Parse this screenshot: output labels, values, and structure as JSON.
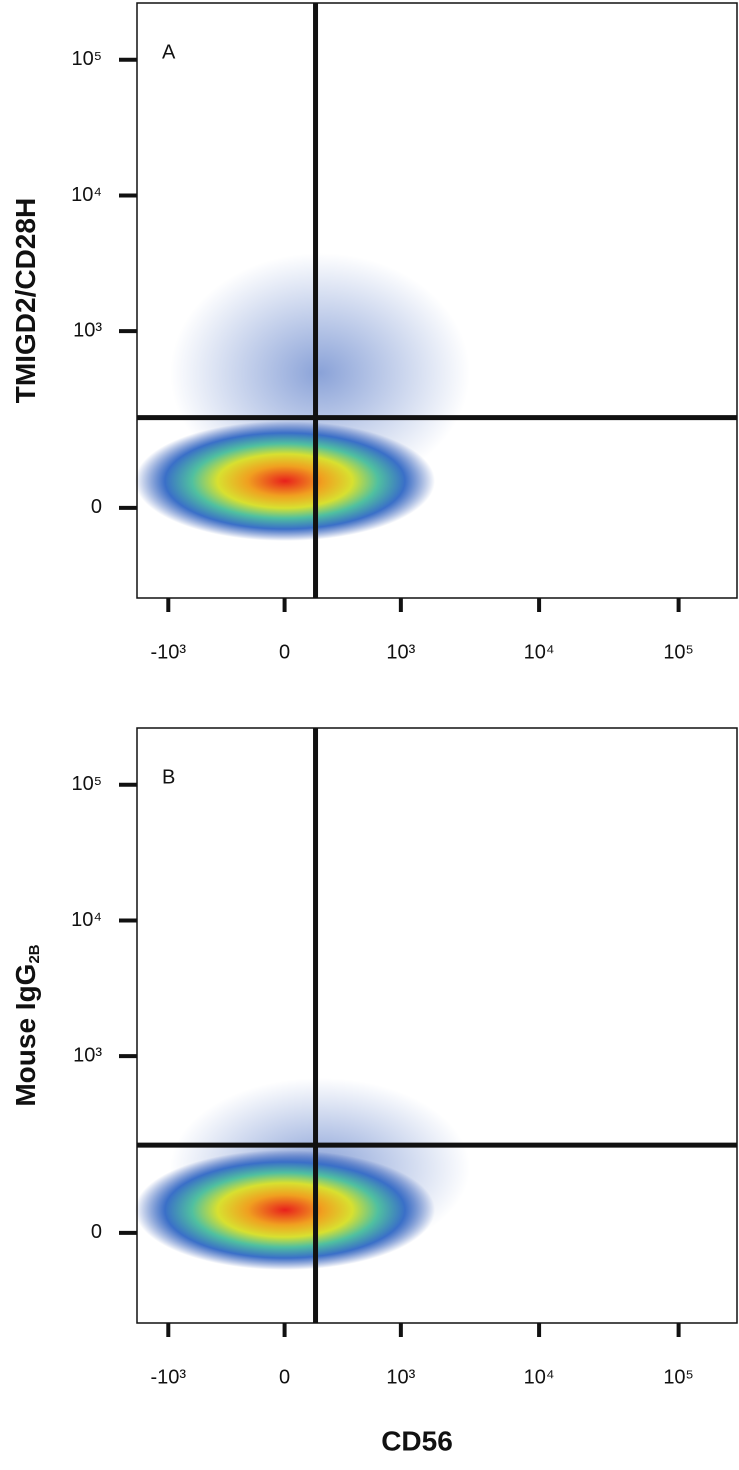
{
  "chart_data": [
    {
      "type": "density",
      "panel_label": "A",
      "ylabel": "TMIGD2/CD28H",
      "xscale": "biexponential",
      "yscale": "biexponential",
      "xlim": [
        -1700,
        262144
      ],
      "ylim": [
        -220,
        262144
      ],
      "xticks": [
        {
          "value": -1000,
          "label": "-10³"
        },
        0,
        {
          "value": 1000,
          "label": "10³"
        },
        {
          "value": 10000,
          "label": "10⁴"
        },
        {
          "value": 100000,
          "label": "10⁵"
        }
      ],
      "yticks": [
        0,
        {
          "value": 1000,
          "label": "10³"
        },
        {
          "value": 10000,
          "label": "10⁴"
        },
        {
          "value": 100000,
          "label": "10⁵"
        }
      ],
      "gate": {
        "x": 160,
        "y": 220
      }
    },
    {
      "type": "density",
      "panel_label": "B",
      "ylabel": "Mouse IgG",
      "ylabel_subscript": "2B",
      "xlabel": "CD56",
      "xscale": "biexponential",
      "yscale": "biexponential",
      "xlim": [
        -1700,
        262144
      ],
      "ylim": [
        -220,
        262144
      ],
      "xticks": [
        {
          "value": -1000,
          "label": "-10³"
        },
        0,
        {
          "value": 1000,
          "label": "10³"
        },
        {
          "value": 10000,
          "label": "10⁴"
        },
        {
          "value": 100000,
          "label": "10⁵"
        }
      ],
      "yticks": [
        0,
        {
          "value": 1000,
          "label": "10³"
        },
        {
          "value": 10000,
          "label": "10⁴"
        },
        {
          "value": 100000,
          "label": "10⁵"
        }
      ],
      "gate": {
        "x": 160,
        "y": 210
      }
    }
  ]
}
